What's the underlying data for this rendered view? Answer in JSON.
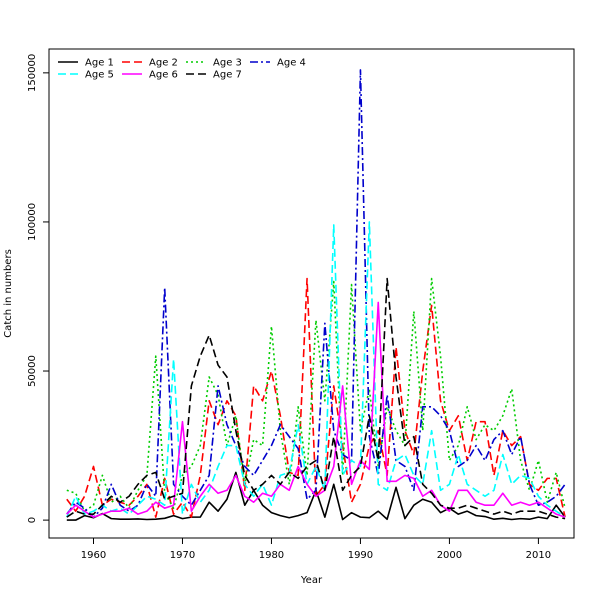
{
  "chart_data": {
    "type": "line",
    "xlabel": "Year",
    "ylabel": "Catch in numbers",
    "xlim": [
      1955,
      2014
    ],
    "ylim": [
      -6000,
      158000
    ],
    "x_ticks": [
      1960,
      1970,
      1980,
      1990,
      2000,
      2010
    ],
    "y_ticks": [
      0,
      50000,
      100000,
      150000
    ],
    "legend_position": "top-left",
    "x": [
      1957,
      1958,
      1959,
      1960,
      1961,
      1962,
      1963,
      1964,
      1965,
      1966,
      1967,
      1968,
      1969,
      1970,
      1971,
      1972,
      1973,
      1974,
      1975,
      1976,
      1977,
      1978,
      1979,
      1980,
      1981,
      1982,
      1983,
      1984,
      1985,
      1986,
      1987,
      1988,
      1989,
      1990,
      1991,
      1992,
      1993,
      1994,
      1995,
      1996,
      1997,
      1998,
      1999,
      2000,
      2001,
      2002,
      2003,
      2004,
      2005,
      2006,
      2007,
      2008,
      2009,
      2010,
      2011,
      2012,
      2013
    ],
    "series": [
      {
        "name": "Age 1",
        "color": "#000000",
        "dash": "solid",
        "values": [
          0,
          0,
          1500,
          800,
          2200,
          500,
          300,
          300,
          400,
          200,
          300,
          600,
          1500,
          500,
          1000,
          1000,
          6000,
          3000,
          7000,
          16000,
          5000,
          10000,
          5000,
          2500,
          1500,
          800,
          1500,
          2500,
          10000,
          1000,
          12000,
          200,
          2500,
          1000,
          800,
          3000,
          300,
          11000,
          500,
          5000,
          7000,
          6000,
          2500,
          4000,
          2000,
          3000,
          1500,
          1200,
          300,
          600,
          200,
          500,
          300,
          1000,
          500,
          5000,
          1000
        ]
      },
      {
        "name": "Age 2",
        "color": "#ff0000",
        "dash": "long",
        "values": [
          7000,
          3000,
          8000,
          18000,
          5000,
          7000,
          6000,
          5000,
          8000,
          12000,
          1000,
          14000,
          2000,
          6000,
          1000,
          15000,
          40000,
          32000,
          40000,
          35000,
          10000,
          45000,
          40000,
          50000,
          35000,
          16000,
          15000,
          81000,
          8000,
          12000,
          45000,
          25000,
          6000,
          12000,
          25000,
          30000,
          15000,
          58000,
          30000,
          22000,
          50000,
          72000,
          40000,
          30000,
          35000,
          20000,
          33000,
          33000,
          15000,
          30000,
          25000,
          28000,
          12000,
          10000,
          14000,
          14000,
          1000
        ]
      },
      {
        "name": "Age 3",
        "color": "#00cc00",
        "dash": "dot",
        "values": [
          10000,
          9000,
          3000,
          5000,
          15000,
          6000,
          8000,
          4000,
          10000,
          15000,
          55000,
          9000,
          4000,
          15000,
          18000,
          25000,
          48000,
          42000,
          25000,
          35000,
          12000,
          27000,
          25000,
          65000,
          30000,
          12000,
          38000,
          15000,
          67000,
          40000,
          80000,
          15000,
          79000,
          30000,
          44000,
          18000,
          38000,
          30000,
          25000,
          70000,
          30000,
          81000,
          55000,
          20000,
          25000,
          38000,
          27000,
          32000,
          30000,
          35000,
          44000,
          20000,
          10000,
          20000,
          6000,
          16000,
          4000
        ]
      },
      {
        "name": "Age 4",
        "color": "#0000cc",
        "dash": "dashdot",
        "values": [
          2000,
          6000,
          4000,
          1000,
          4000,
          12000,
          5000,
          3000,
          5000,
          12000,
          8000,
          78000,
          12000,
          8000,
          5000,
          10000,
          15000,
          45000,
          32000,
          25000,
          18000,
          15000,
          20000,
          25000,
          32000,
          28000,
          24000,
          7000,
          10000,
          66000,
          30000,
          22000,
          20000,
          151000,
          28000,
          15000,
          42000,
          20000,
          18000,
          10000,
          38000,
          38000,
          35000,
          30000,
          18000,
          20000,
          25000,
          20000,
          27000,
          30000,
          22000,
          28000,
          12000,
          5000,
          6000,
          8000,
          12000
        ]
      },
      {
        "name": "Age 5",
        "color": "#00ffff",
        "dash": "long",
        "values": [
          1000,
          8000,
          2000,
          3000,
          5000,
          3000,
          4000,
          2000,
          5000,
          8000,
          7000,
          5000,
          54000,
          2000,
          12000,
          6000,
          10000,
          18000,
          25000,
          25000,
          12000,
          8000,
          12000,
          5000,
          15000,
          16000,
          32000,
          12000,
          18000,
          10000,
          99000,
          15000,
          20000,
          18000,
          100000,
          12000,
          10000,
          20000,
          22000,
          15000,
          12000,
          30000,
          10000,
          12000,
          22000,
          12000,
          10000,
          8000,
          10000,
          22000,
          12000,
          15000,
          14000,
          8000,
          5000,
          3000,
          1000
        ]
      },
      {
        "name": "Age 6",
        "color": "#ff00ff",
        "dash": "solid",
        "values": [
          2000,
          5000,
          3000,
          1000,
          2000,
          3000,
          3000,
          4000,
          2000,
          3000,
          6000,
          4000,
          5000,
          33000,
          3000,
          8000,
          12000,
          9000,
          10000,
          15000,
          8000,
          6000,
          9000,
          8000,
          12000,
          10000,
          18000,
          12000,
          8000,
          10000,
          18000,
          45000,
          12000,
          20000,
          17000,
          73000,
          13000,
          13000,
          15000,
          14000,
          8000,
          10000,
          5000,
          3000,
          10000,
          10000,
          6000,
          5000,
          5000,
          9000,
          5000,
          6000,
          5000,
          6000,
          4000,
          2000,
          1000
        ]
      },
      {
        "name": "Age 7",
        "color": "#000000",
        "dash": "long",
        "values": [
          1000,
          3000,
          2000,
          2000,
          5000,
          8000,
          6000,
          8000,
          12000,
          15000,
          16000,
          7000,
          8000,
          9000,
          45000,
          55000,
          62000,
          52000,
          48000,
          30000,
          15000,
          10000,
          12000,
          15000,
          12000,
          16000,
          14000,
          18000,
          20000,
          10000,
          28000,
          10000,
          15000,
          18000,
          35000,
          20000,
          81000,
          48000,
          25000,
          28000,
          12000,
          9000,
          5000,
          4000,
          4000,
          5000,
          4000,
          3000,
          2000,
          3000,
          2000,
          3000,
          3000,
          3000,
          2000,
          1000,
          500
        ]
      }
    ]
  }
}
